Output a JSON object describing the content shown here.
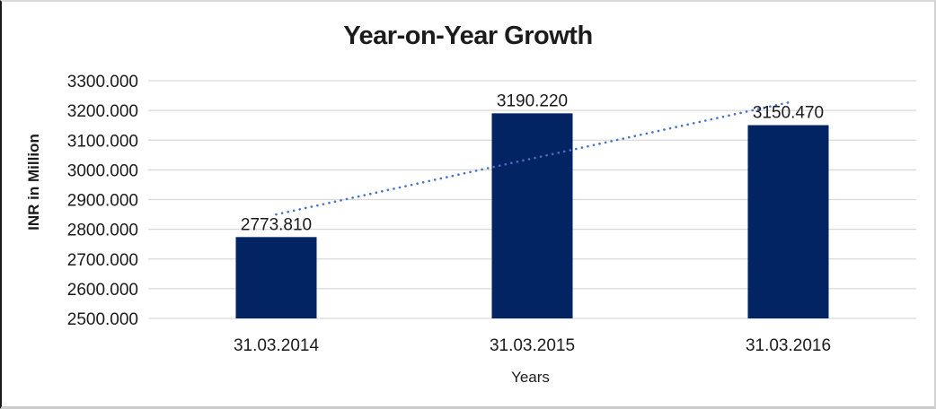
{
  "chart_data": {
    "type": "bar",
    "title": "Year-on-Year Growth",
    "xlabel": "Years",
    "ylabel": "INR in Million",
    "categories": [
      "31.03.2014",
      "31.03.2015",
      "31.03.2016"
    ],
    "values": [
      2773.81,
      3190.22,
      3150.47
    ],
    "data_labels": [
      "2773.810",
      "3190.220",
      "3150.470"
    ],
    "ylim": [
      2500,
      3300
    ],
    "yticks": [
      2500,
      2600,
      2700,
      2800,
      2900,
      3000,
      3100,
      3200,
      3300
    ],
    "ytick_labels": [
      "2500.000",
      "2600.000",
      "2700.000",
      "2800.000",
      "2900.000",
      "3000.000",
      "3100.000",
      "3200.000",
      "3300.000"
    ],
    "grid": "horizontal",
    "legend_position": "none",
    "bar_color": "#032462",
    "grid_color": "#D9D9D9",
    "label_color": "#1a1a1a",
    "trendline": {
      "type": "linear",
      "style": "dotted",
      "color": "#4472C4"
    }
  }
}
